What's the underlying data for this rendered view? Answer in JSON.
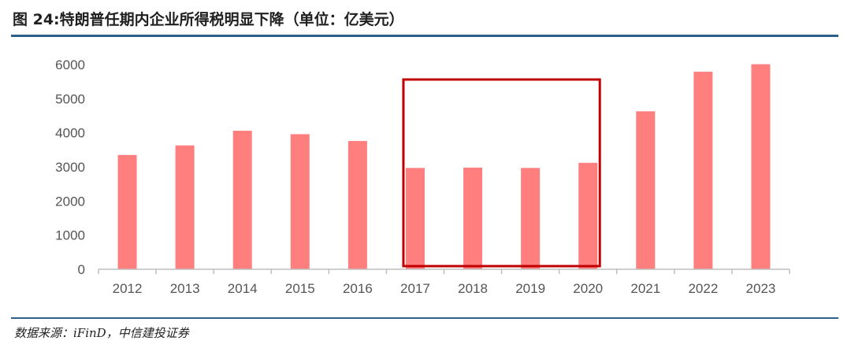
{
  "title": "图 24:特朗普任期内企业所得税明显下降（单位：亿美元）",
  "source": "数据来源：iFinD，中信建投证券",
  "colors": {
    "bar": "#ff7f7f",
    "highlight_box": "#c00000",
    "rule": "#2c5f8a",
    "axis": "#bfbfbf"
  },
  "chart_data": {
    "type": "bar",
    "title": "",
    "xlabel": "",
    "ylabel": "",
    "categories": [
      "2012",
      "2013",
      "2014",
      "2015",
      "2016",
      "2017",
      "2018",
      "2019",
      "2020",
      "2021",
      "2022",
      "2023"
    ],
    "series": [
      {
        "values": [
          3350,
          3630,
          4060,
          3960,
          3760,
          2970,
          2980,
          2970,
          3120,
          4630,
          5790,
          6010
        ]
      }
    ],
    "ylim": [
      0,
      6000
    ],
    "yticks": [
      "0",
      "1000",
      "2000",
      "3000",
      "4000",
      "5000",
      "6000"
    ],
    "grid": false,
    "legend": "none",
    "highlight_categories": [
      "2017",
      "2020"
    ]
  }
}
